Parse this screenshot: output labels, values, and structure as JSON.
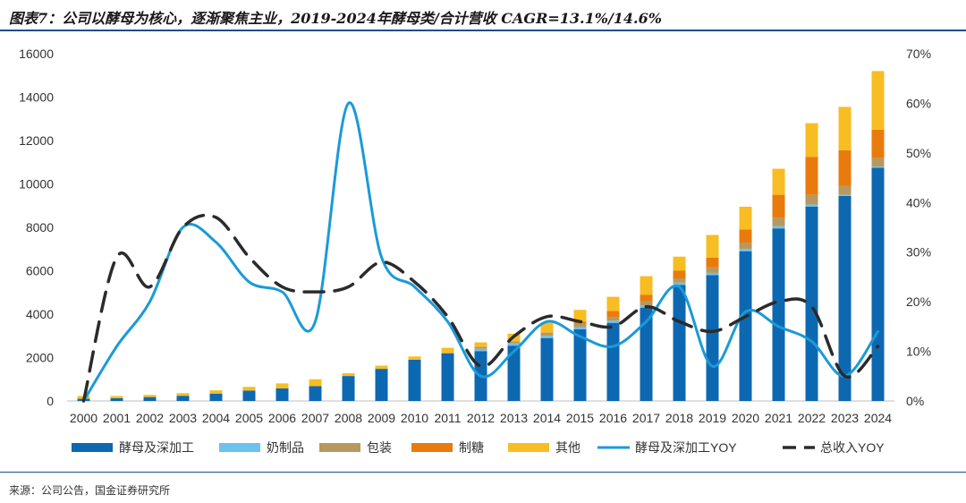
{
  "page": {
    "title": "图表7：公司以酵母为核心，逐渐聚焦主业，2019-2024年酵母类/合计营收 CAGR=13.1%/14.6%",
    "source": "来源：公司公告，国金证券研究所"
  },
  "colors": {
    "yeast": "#0d68b2",
    "dairy": "#6cc1ee",
    "packaging": "#b7995f",
    "sugar": "#e97b0c",
    "other": "#f8bd22",
    "yeast_yoy": "#1a9ad8",
    "total_yoy": "#2b2b2b"
  },
  "chart_data": {
    "type": "bar",
    "stacked": true,
    "categories": [
      "2000",
      "2001",
      "2002",
      "2003",
      "2004",
      "2005",
      "2006",
      "2007",
      "2008",
      "2009",
      "2010",
      "2011",
      "2012",
      "2013",
      "2014",
      "2015",
      "2016",
      "2017",
      "2018",
      "2019",
      "2020",
      "2021",
      "2022",
      "2023",
      "2024"
    ],
    "series": [
      {
        "name": "酵母及深加工",
        "key": "yeast",
        "axis": "left",
        "values": [
          100,
          130,
          180,
          240,
          340,
          480,
          580,
          680,
          1150,
          1480,
          1900,
          2200,
          2300,
          2550,
          2900,
          3300,
          3600,
          4300,
          5350,
          5800,
          6900,
          7950,
          8950,
          9450,
          10750
        ]
      },
      {
        "name": "奶制品",
        "key": "dairy",
        "axis": "left",
        "values": [
          0,
          0,
          0,
          0,
          0,
          0,
          0,
          0,
          0,
          0,
          0,
          0,
          100,
          100,
          100,
          100,
          100,
          100,
          100,
          100,
          100,
          100,
          100,
          50,
          50
        ]
      },
      {
        "name": "包装",
        "key": "packaging",
        "axis": "left",
        "values": [
          0,
          0,
          0,
          0,
          0,
          0,
          0,
          0,
          0,
          0,
          0,
          0,
          100,
          100,
          150,
          150,
          150,
          200,
          200,
          250,
          300,
          400,
          450,
          400,
          400
        ]
      },
      {
        "name": "制糖",
        "key": "sugar",
        "axis": "left",
        "values": [
          0,
          0,
          0,
          0,
          0,
          0,
          0,
          0,
          0,
          0,
          0,
          0,
          0,
          0,
          0,
          100,
          300,
          300,
          350,
          450,
          600,
          1050,
          1750,
          1650,
          1300
        ]
      },
      {
        "name": "其他",
        "key": "other",
        "axis": "left",
        "values": [
          130,
          100,
          100,
          120,
          150,
          170,
          230,
          320,
          130,
          150,
          150,
          250,
          200,
          350,
          450,
          550,
          650,
          850,
          650,
          1050,
          1050,
          1200,
          1550,
          2000,
          2700
        ]
      },
      {
        "name": "酵母及深加工YOY",
        "key": "yeast_yoy",
        "axis": "right",
        "type": "line",
        "smooth": true,
        "values": [
          0,
          11,
          20,
          35,
          32,
          24,
          22,
          16,
          60,
          29,
          23,
          16,
          5,
          10,
          16,
          13,
          11,
          16,
          23,
          7,
          18,
          15,
          12,
          5,
          14
        ]
      },
      {
        "name": "总收入YOY",
        "key": "total_yoy",
        "axis": "right",
        "type": "line",
        "dashed": true,
        "smooth": true,
        "values": [
          0,
          29,
          23,
          35,
          37,
          29,
          23,
          22,
          23,
          28,
          24,
          17,
          7,
          13,
          17,
          16,
          15,
          19,
          16,
          14,
          17,
          20,
          19,
          5,
          11
        ]
      }
    ],
    "left_axis": {
      "ticks": [
        "0",
        "2000",
        "4000",
        "6000",
        "8000",
        "10000",
        "12000",
        "14000",
        "16000"
      ],
      "ylim": [
        0,
        16000
      ]
    },
    "right_axis": {
      "ticks": [
        "0%",
        "10%",
        "20%",
        "30%",
        "40%",
        "50%",
        "60%",
        "70%"
      ],
      "ylim": [
        0,
        70
      ]
    },
    "legend_position": "bottom"
  }
}
